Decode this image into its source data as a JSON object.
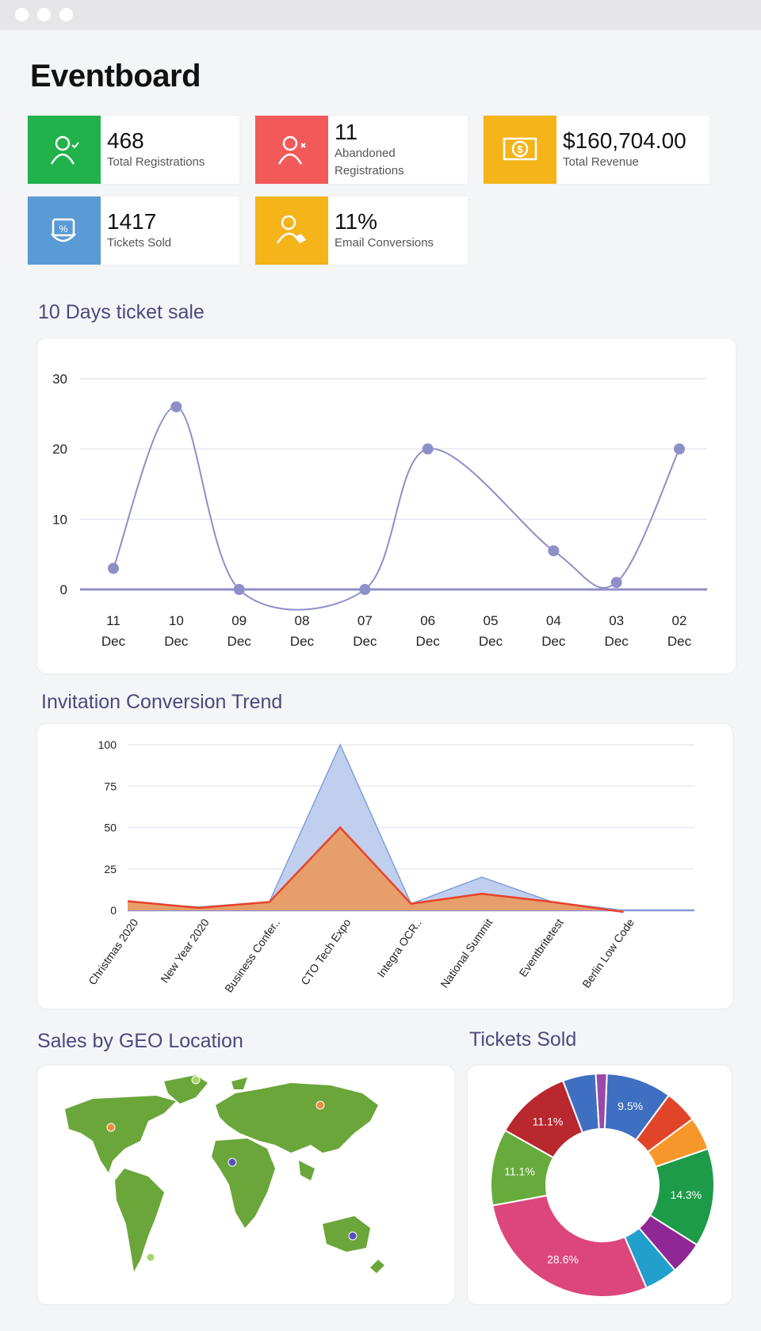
{
  "window": {
    "controls": [
      "dot",
      "dot",
      "dot"
    ]
  },
  "header": {
    "title": "Eventboard"
  },
  "stats": [
    {
      "value": "468",
      "label": "Total Registrations",
      "color": "#21b24b",
      "icon": "user-check-icon"
    },
    {
      "value": "11",
      "label": "Abandoned Registrations",
      "color": "#f25a5a",
      "icon": "user-x-icon"
    },
    {
      "value": "$160,704.00",
      "label": "Total Revenue",
      "color": "#f5b41a",
      "icon": "money-icon"
    },
    {
      "value": "1417",
      "label": "Tickets Sold",
      "color": "#5b9bd5",
      "icon": "ticket-hand-icon"
    },
    {
      "value": "11%",
      "label": "Email Conversions",
      "color": "#f5b41a",
      "icon": "user-email-icon"
    }
  ],
  "sections": {
    "ticket_sale": "10 Days ticket sale",
    "conversion": "Invitation Conversion Trend",
    "geo": "Sales by GEO Location",
    "tickets": "Tickets Sold"
  },
  "chart_data": [
    {
      "type": "line",
      "title": "10 Days ticket sale",
      "categories": [
        "11 Dec",
        "10 Dec",
        "09 Dec",
        "08 Dec",
        "07 Dec",
        "06 Dec",
        "05 Dec",
        "04 Dec",
        "03 Dec",
        "02 Dec"
      ],
      "values": [
        3,
        26,
        0,
        null,
        0,
        20,
        null,
        5.5,
        1,
        20
      ],
      "yticks": [
        0,
        10,
        20,
        30
      ],
      "ylim": [
        0,
        30
      ],
      "color": "#8f8fc8",
      "grid": true
    },
    {
      "type": "area",
      "title": "Invitation Conversion Trend",
      "categories": [
        "Christmas 2020",
        "New Year 2020",
        "Business Confer..",
        "CTO Tech Expo",
        "Integra OCR..",
        "National Summit",
        "Eventbritetest",
        "Berlin Low Code",
        ""
      ],
      "series": [
        {
          "values": [
            5,
            2,
            5,
            100,
            4,
            20,
            5,
            0,
            0
          ],
          "color": "#7e9fdc"
        },
        {
          "values": [
            5.5,
            1.5,
            5,
            50,
            4,
            10,
            5,
            -1,
            null
          ],
          "color": "#e8432b"
        }
      ],
      "yticks": [
        0,
        25,
        50,
        75,
        100
      ],
      "ylim": [
        0,
        100
      ],
      "grid": true
    },
    {
      "type": "pie",
      "title": "Tickets Sold",
      "donut": true,
      "values": [
        9.5,
        4.8,
        4.8,
        14.3,
        4.8,
        4.8,
        28.6,
        11.1,
        11.1,
        4.8,
        1.6
      ],
      "labels": [
        "9.5%",
        "",
        "",
        "14.3%",
        "",
        "",
        "28.6%",
        "11.1%",
        "11.1%",
        "",
        ""
      ],
      "colors": [
        "#3f6fc0",
        "#e0452a",
        "#f7962a",
        "#1e9b48",
        "#8f2795",
        "#229fcb",
        "#dc467b",
        "#66ab3c",
        "#b8282e",
        "#3f6fc0",
        "#9b48a8"
      ]
    }
  ],
  "map": {
    "land_color": "#6aa63a",
    "markers": [
      {
        "color": "#a8d46a"
      },
      {
        "color": "#f08c3a"
      },
      {
        "color": "#f08c3a"
      },
      {
        "color": "#5a4fc0"
      },
      {
        "color": "#5a4fc0"
      },
      {
        "color": "#a8d46a"
      }
    ]
  }
}
